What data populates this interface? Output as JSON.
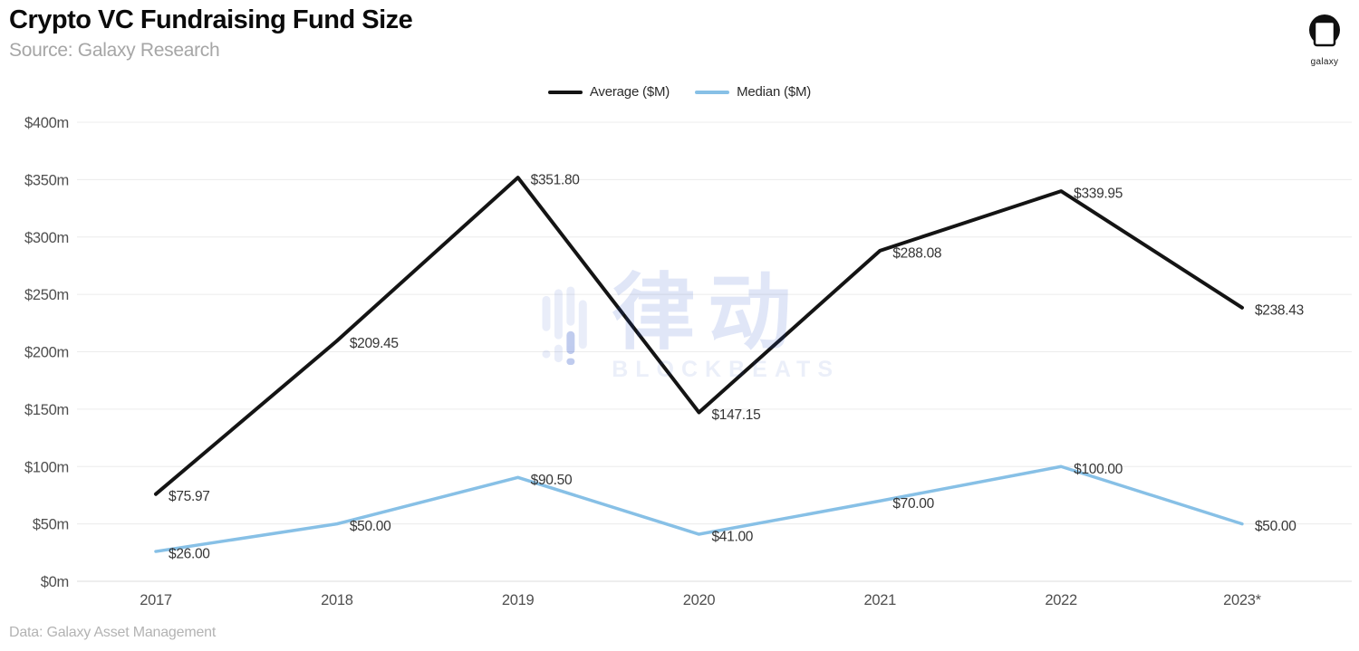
{
  "header": {
    "title": "Crypto VC Fundraising Fund Size",
    "subtitle": "Source: Galaxy Research",
    "brand_label": "galaxy"
  },
  "legend": {
    "items": [
      {
        "label": "Average ($M)",
        "color": "#141414"
      },
      {
        "label": "Median ($M)",
        "color": "#87c0e6"
      }
    ]
  },
  "watermark": {
    "cjk": "律动",
    "latin": "BLOCKBEATS"
  },
  "footer": {
    "note": "Data: Galaxy Asset Management"
  },
  "chart_data": {
    "type": "line",
    "title": "Crypto VC Fundraising Fund Size",
    "xlabel": "",
    "ylabel": "",
    "categories": [
      "2017",
      "2018",
      "2019",
      "2020",
      "2021",
      "2022",
      "2023*"
    ],
    "series": [
      {
        "name": "Average ($M)",
        "color": "#141414",
        "values": [
          75.97,
          209.45,
          351.8,
          147.15,
          288.08,
          339.95,
          238.43
        ],
        "labels": [
          "$75.97",
          "$209.45",
          "$351.80",
          "$147.15",
          "$288.08",
          "$339.95",
          "$238.43"
        ]
      },
      {
        "name": "Median ($M)",
        "color": "#87c0e6",
        "values": [
          26.0,
          50.0,
          90.5,
          41.0,
          70.0,
          100.0,
          50.0
        ],
        "labels": [
          "$26.00",
          "$50.00",
          "$90.50",
          "$41.00",
          "$70.00",
          "$100.00",
          "$50.00"
        ]
      }
    ],
    "ylim": [
      0,
      400
    ],
    "ytick_step": 50,
    "yticks": [
      "$0m",
      "$50m",
      "$100m",
      "$150m",
      "$200m",
      "$250m",
      "$300m",
      "$350m",
      "$400m"
    ],
    "grid": true,
    "legend_position": "top-center"
  }
}
